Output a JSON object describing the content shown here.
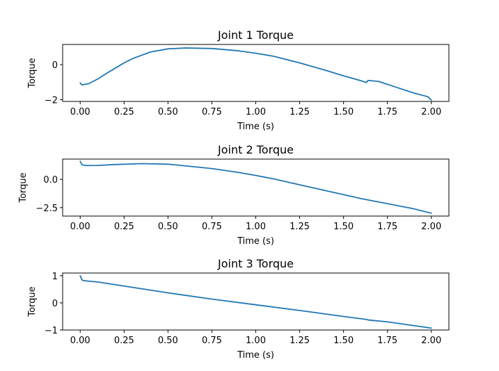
{
  "figure": {
    "colors": {
      "series": "#1f77b4",
      "axes": "#000000",
      "background": "#ffffff"
    }
  },
  "chart_data": [
    {
      "type": "line",
      "title": "Joint 1 Torque",
      "xlabel": "Time (s)",
      "ylabel": "Torque",
      "xlim": [
        -0.1,
        2.1
      ],
      "ylim": [
        -2.1,
        1.15
      ],
      "xticks": [
        0.0,
        0.25,
        0.5,
        0.75,
        1.0,
        1.25,
        1.5,
        1.75,
        2.0
      ],
      "xticklabels": [
        "0.00",
        "0.25",
        "0.50",
        "0.75",
        "1.00",
        "1.25",
        "1.50",
        "1.75",
        "2.00"
      ],
      "yticks": [
        -2,
        0
      ],
      "yticklabels": [
        "−2",
        "0"
      ],
      "grid": false,
      "series": [
        {
          "x": [
            0.0,
            0.01,
            0.05,
            0.1,
            0.15,
            0.2,
            0.25,
            0.3,
            0.4,
            0.5,
            0.6,
            0.75,
            0.9,
            1.0,
            1.1,
            1.25,
            1.4,
            1.5,
            1.6,
            1.63,
            1.64,
            1.7,
            1.8,
            1.9,
            1.98,
            2.0
          ],
          "y": [
            -1.05,
            -1.16,
            -1.08,
            -0.82,
            -0.5,
            -0.2,
            0.1,
            0.35,
            0.72,
            0.9,
            0.95,
            0.92,
            0.79,
            0.65,
            0.48,
            0.1,
            -0.33,
            -0.64,
            -0.92,
            -1.02,
            -0.9,
            -0.96,
            -1.29,
            -1.62,
            -1.83,
            -2.02
          ]
        }
      ]
    },
    {
      "type": "line",
      "title": "Joint 2 Torque",
      "xlabel": "Time (s)",
      "ylabel": "Torque",
      "xlim": [
        -0.1,
        2.1
      ],
      "ylim": [
        -3.25,
        1.8
      ],
      "xticks": [
        0.0,
        0.25,
        0.5,
        0.75,
        1.0,
        1.25,
        1.5,
        1.75,
        2.0
      ],
      "xticklabels": [
        "0.00",
        "0.25",
        "0.50",
        "0.75",
        "1.00",
        "1.25",
        "1.50",
        "1.75",
        "2.00"
      ],
      "yticks": [
        -2.5,
        0.0
      ],
      "yticklabels": [
        "−2.5",
        "0.0"
      ],
      "grid": false,
      "series": [
        {
          "x": [
            0.0,
            0.01,
            0.03,
            0.1,
            0.2,
            0.35,
            0.5,
            0.6,
            0.75,
            0.9,
            1.0,
            1.1,
            1.25,
            1.4,
            1.5,
            1.6,
            1.75,
            1.9,
            2.0
          ],
          "y": [
            1.6,
            1.3,
            1.23,
            1.24,
            1.32,
            1.4,
            1.35,
            1.2,
            0.96,
            0.62,
            0.35,
            0.05,
            -0.48,
            -1.0,
            -1.35,
            -1.7,
            -2.15,
            -2.6,
            -3.0
          ]
        }
      ]
    },
    {
      "type": "line",
      "title": "Joint 3 Torque",
      "xlabel": "Time (s)",
      "ylabel": "Torque",
      "xlim": [
        -0.1,
        2.1
      ],
      "ylim": [
        -1.0,
        1.1
      ],
      "xticks": [
        0.0,
        0.25,
        0.5,
        0.75,
        1.0,
        1.25,
        1.5,
        1.75,
        2.0
      ],
      "xticklabels": [
        "0.00",
        "0.25",
        "0.50",
        "0.75",
        "1.00",
        "1.25",
        "1.50",
        "1.75",
        "2.00"
      ],
      "yticks": [
        -1,
        0,
        1
      ],
      "yticklabels": [
        "−1",
        "0",
        "1"
      ],
      "grid": false,
      "series": [
        {
          "x": [
            0.0,
            0.01,
            0.02,
            0.05,
            0.1,
            0.25,
            0.5,
            0.75,
            1.0,
            1.25,
            1.5,
            1.63,
            1.64,
            1.75,
            2.0
          ],
          "y": [
            1.0,
            0.85,
            0.82,
            0.8,
            0.77,
            0.62,
            0.37,
            0.14,
            -0.07,
            -0.28,
            -0.5,
            -0.61,
            -0.63,
            -0.7,
            -0.93
          ]
        }
      ]
    }
  ]
}
